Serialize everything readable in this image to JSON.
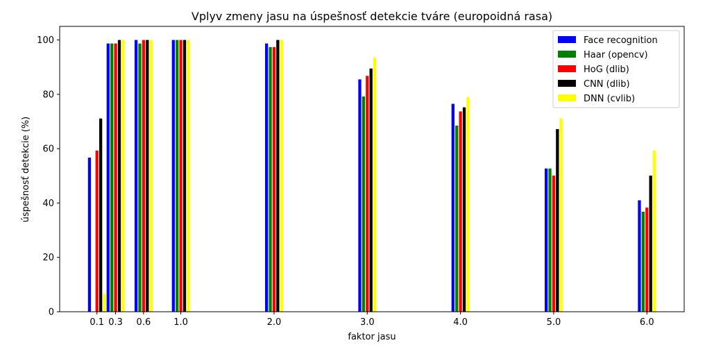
{
  "chart_data": {
    "type": "bar",
    "title": "Vplyv zmeny jasu na úspešnosť detekcie tváre (europoidná rasa)",
    "xlabel": "faktor jasu",
    "ylabel": "úspešnosť detekcie (%)",
    "categories": [
      "0.1",
      "0.3",
      "0.6",
      "1.0",
      "2.0",
      "3.0",
      "4.0",
      "5.0",
      "6.0"
    ],
    "x": [
      0.1,
      0.3,
      0.6,
      1.0,
      2.0,
      3.0,
      4.0,
      5.0,
      6.0
    ],
    "xlim": [
      -0.3,
      6.4
    ],
    "ylim": [
      0,
      105
    ],
    "yticks": [
      0,
      20,
      40,
      60,
      80,
      100
    ],
    "legend_position": "top-right",
    "grid": false,
    "series": [
      {
        "name": "Face recognition",
        "color": "#0000ff",
        "values": [
          56.7,
          98.7,
          100,
          100,
          98.7,
          85.5,
          76.5,
          52.7,
          41.0
        ]
      },
      {
        "name": "Haar (opencv)",
        "color": "#008000",
        "values": [
          0,
          98.7,
          98.7,
          100,
          97.4,
          79.2,
          68.5,
          52.7,
          36.8
        ]
      },
      {
        "name": "HoG (dlib)",
        "color": "#ff0000",
        "values": [
          59.3,
          98.7,
          100,
          100,
          97.4,
          86.8,
          73.7,
          50.1,
          38.3
        ]
      },
      {
        "name": "CNN (dlib)",
        "color": "#000000",
        "values": [
          71.1,
          100,
          100,
          100,
          100,
          89.5,
          75.2,
          67.2,
          50.1
        ]
      },
      {
        "name": "DNN (cvlib)",
        "color": "#ffff00",
        "values": [
          6.6,
          100,
          100,
          100,
          100,
          93.5,
          79.0,
          71.1,
          59.3
        ]
      }
    ]
  }
}
